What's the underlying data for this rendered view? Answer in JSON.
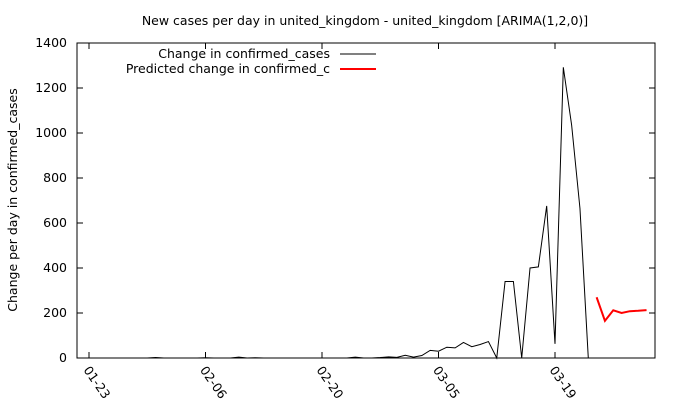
{
  "chart_data": {
    "type": "line",
    "title": "New cases per day in united_kingdom - united_kingdom [ARIMA(1,2,0)]",
    "xlabel": "",
    "ylabel": "Change per day in confirmed_cases",
    "x_axis": {
      "type": "date",
      "ticks": [
        "01-23",
        "02-06",
        "02-20",
        "03-05",
        "03-19"
      ],
      "range": [
        "01-23",
        "04-01"
      ]
    },
    "ylim": [
      0,
      1400
    ],
    "yticks": [
      0,
      200,
      400,
      600,
      800,
      1000,
      1200,
      1400
    ],
    "grid": false,
    "legend_position": "top-left",
    "series": [
      {
        "name": "Change in confirmed_cases",
        "color": "#000000",
        "points": [
          [
            "01-23",
            0
          ],
          [
            "01-24",
            0
          ],
          [
            "01-25",
            0
          ],
          [
            "01-26",
            0
          ],
          [
            "01-27",
            0
          ],
          [
            "01-28",
            0
          ],
          [
            "01-29",
            0
          ],
          [
            "01-30",
            0
          ],
          [
            "01-31",
            2
          ],
          [
            "02-01",
            0
          ],
          [
            "02-02",
            0
          ],
          [
            "02-03",
            0
          ],
          [
            "02-04",
            0
          ],
          [
            "02-05",
            0
          ],
          [
            "02-06",
            1
          ],
          [
            "02-07",
            0
          ],
          [
            "02-08",
            0
          ],
          [
            "02-09",
            0
          ],
          [
            "02-10",
            4
          ],
          [
            "02-11",
            0
          ],
          [
            "02-12",
            1
          ],
          [
            "02-13",
            0
          ],
          [
            "02-14",
            0
          ],
          [
            "02-15",
            0
          ],
          [
            "02-16",
            0
          ],
          [
            "02-17",
            0
          ],
          [
            "02-18",
            0
          ],
          [
            "02-19",
            0
          ],
          [
            "02-20",
            0
          ],
          [
            "02-21",
            0
          ],
          [
            "02-22",
            0
          ],
          [
            "02-23",
            0
          ],
          [
            "02-24",
            4
          ],
          [
            "02-25",
            0
          ],
          [
            "02-26",
            0
          ],
          [
            "02-27",
            2
          ],
          [
            "02-28",
            5
          ],
          [
            "02-29",
            3
          ],
          [
            "03-01",
            12
          ],
          [
            "03-02",
            4
          ],
          [
            "03-03",
            11
          ],
          [
            "03-04",
            34
          ],
          [
            "03-05",
            30
          ],
          [
            "03-06",
            48
          ],
          [
            "03-07",
            45
          ],
          [
            "03-08",
            69
          ],
          [
            "03-09",
            50
          ],
          [
            "03-10",
            60
          ],
          [
            "03-11",
            73
          ],
          [
            "03-12",
            0
          ],
          [
            "03-13",
            340
          ],
          [
            "03-14",
            340
          ],
          [
            "03-15",
            0
          ],
          [
            "03-16",
            400
          ],
          [
            "03-17",
            405
          ],
          [
            "03-18",
            676
          ],
          [
            "03-19",
            63
          ],
          [
            "03-20",
            1292
          ],
          [
            "03-21",
            1035
          ],
          [
            "03-22",
            665
          ],
          [
            "03-23",
            0
          ]
        ]
      },
      {
        "name": "Predicted change in confirmed_c",
        "color": "#ff0000",
        "points": [
          [
            "03-24",
            270
          ],
          [
            "03-25",
            165
          ],
          [
            "03-26",
            212
          ],
          [
            "03-27",
            200
          ],
          [
            "03-28",
            208
          ],
          [
            "03-29",
            210
          ],
          [
            "03-30",
            213
          ]
        ]
      }
    ]
  }
}
